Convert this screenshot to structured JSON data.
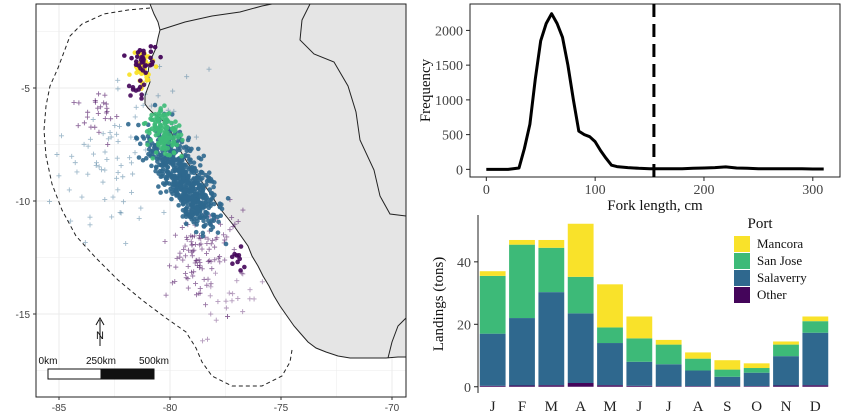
{
  "colors": {
    "mancora": "#f9e22a",
    "san_jose": "#3dba78",
    "salaverry": "#2f688e",
    "other": "#44055a",
    "land": "#e5e5e5",
    "grid": "#ebebeb",
    "ink": "#111111"
  },
  "map": {
    "x_ticks": [
      "-85",
      "-80",
      "-75",
      "-70"
    ],
    "y_ticks": [
      "-5",
      "-10",
      "-15"
    ],
    "north_label": "N",
    "scale_labels": [
      "0km",
      "250km",
      "500km"
    ]
  },
  "chart_data": [
    {
      "type": "line",
      "x": [
        0,
        20,
        30,
        35,
        40,
        45,
        50,
        55,
        60,
        65,
        70,
        75,
        80,
        85,
        90,
        95,
        100,
        105,
        110,
        115,
        120,
        130,
        140,
        150,
        160,
        170,
        180,
        190,
        200,
        210,
        220,
        230,
        240,
        250,
        260,
        270,
        280,
        290,
        300,
        310
      ],
      "y": [
        0,
        0,
        20,
        300,
        650,
        1300,
        1850,
        2100,
        2240,
        2100,
        1900,
        1500,
        1000,
        550,
        500,
        470,
        400,
        270,
        160,
        60,
        40,
        25,
        15,
        10,
        10,
        10,
        10,
        15,
        20,
        25,
        35,
        20,
        15,
        10,
        10,
        10,
        10,
        10,
        5,
        5
      ],
      "xlabel": "Fork length, cm",
      "ylabel": "Frequency",
      "x_ticks": [
        0,
        100,
        200,
        300
      ],
      "y_ticks": [
        0,
        500,
        1000,
        1500,
        2000
      ],
      "xlim": [
        -15,
        325
      ],
      "ylim": [
        -110,
        2380
      ],
      "vline_x": 154,
      "grid": false
    },
    {
      "type": "bar",
      "stacked": true,
      "categories": [
        "J",
        "F",
        "M",
        "A",
        "M",
        "J",
        "J",
        "A",
        "S",
        "O",
        "N",
        "D"
      ],
      "series": [
        {
          "name": "Other",
          "color_key": "other",
          "values": [
            0.3,
            0.4,
            0.5,
            1.2,
            0.5,
            0.3,
            0.2,
            0.2,
            0.2,
            0.2,
            0.4,
            0.5
          ]
        },
        {
          "name": "Salaverry",
          "color_key": "salaverry",
          "values": [
            16.7,
            21.6,
            29.8,
            22.3,
            13.5,
            7.7,
            7.0,
            5.0,
            3.0,
            4.3,
            9.4,
            16.8
          ]
        },
        {
          "name": "San Jose",
          "color_key": "san_jose",
          "values": [
            18.5,
            23.5,
            14.2,
            11.7,
            5.0,
            7.5,
            6.3,
            3.8,
            2.3,
            1.5,
            3.7,
            3.7
          ]
        },
        {
          "name": "Mancora",
          "color_key": "mancora",
          "values": [
            1.5,
            1.5,
            2.5,
            17.0,
            13.8,
            7.0,
            1.5,
            2.0,
            3.0,
            1.5,
            1.0,
            1.5
          ]
        }
      ],
      "ylabel": "Landings (tons)",
      "y_ticks": [
        0,
        20,
        40
      ],
      "ylim": [
        -2,
        55
      ],
      "legend_title": "Port",
      "legend_order": [
        "Mancora",
        "San Jose",
        "Salaverry",
        "Other"
      ],
      "legend_position": "top-right",
      "grid": false
    }
  ]
}
